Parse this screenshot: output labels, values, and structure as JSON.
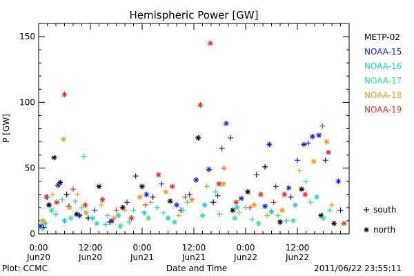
{
  "chart_data": {
    "type": "scatter",
    "title": "Hemispheric Power [GW]",
    "xlabel": "Date and Time",
    "ylabel": "P [GW]",
    "x_units": "hours since 2011-06-20 00:00",
    "xlim": [
      0,
      72
    ],
    "ylim": [
      0,
      160
    ],
    "yticks": [
      0,
      50,
      100,
      150
    ],
    "ytick_labels": [
      "0",
      "50",
      "100",
      "150"
    ],
    "xticks": [
      0,
      12,
      24,
      36,
      48,
      60
    ],
    "xtick_labels": [
      [
        "0:00",
        "Jun20"
      ],
      [
        "12:00",
        "Jun20"
      ],
      [
        "0:00",
        "Jun21"
      ],
      [
        "12:00",
        "Jun21"
      ],
      [
        "0:00",
        "Jun22"
      ],
      [
        "12:00",
        "Jun22"
      ]
    ],
    "marker_legend": [
      {
        "marker": "+",
        "label": "south"
      },
      {
        "marker": "*",
        "label": "north"
      }
    ],
    "series": [
      {
        "name": "METP-02",
        "color": "#000000",
        "points": [
          {
            "x": 1.2,
            "y": 5,
            "m": "+"
          },
          {
            "x": 2.4,
            "y": 22,
            "m": "*"
          },
          {
            "x": 3.6,
            "y": 58,
            "m": "*"
          },
          {
            "x": 5.0,
            "y": 39,
            "m": "*"
          },
          {
            "x": 6.5,
            "y": 30,
            "m": "+"
          },
          {
            "x": 8.8,
            "y": 15,
            "m": "*"
          },
          {
            "x": 11.5,
            "y": 12,
            "m": "+"
          },
          {
            "x": 14.0,
            "y": 36,
            "m": "*"
          },
          {
            "x": 16.5,
            "y": 9,
            "m": "+"
          },
          {
            "x": 19.5,
            "y": 20,
            "m": "*"
          },
          {
            "x": 24.0,
            "y": 36,
            "m": "*"
          },
          {
            "x": 26.5,
            "y": 28,
            "m": "+"
          },
          {
            "x": 30.5,
            "y": 25,
            "m": "*"
          },
          {
            "x": 33.0,
            "y": 18,
            "m": "+"
          },
          {
            "x": 37.0,
            "y": 73,
            "m": "*"
          },
          {
            "x": 40.5,
            "y": 24,
            "m": "+"
          },
          {
            "x": 45.0,
            "y": 18,
            "m": "*"
          },
          {
            "x": 48.5,
            "y": 32,
            "m": "*"
          },
          {
            "x": 52.5,
            "y": 51,
            "m": "+"
          },
          {
            "x": 56.0,
            "y": 9,
            "m": "*"
          },
          {
            "x": 58.5,
            "y": 28,
            "m": "+"
          },
          {
            "x": 61.0,
            "y": 34,
            "m": "*"
          },
          {
            "x": 65.5,
            "y": 14,
            "m": "*"
          },
          {
            "x": 68.5,
            "y": 8,
            "m": "*"
          },
          {
            "x": 70.0,
            "y": 18,
            "m": "+"
          }
        ]
      },
      {
        "name": "NOAA-15",
        "color": "#1428c8",
        "points": [
          {
            "x": 0.5,
            "y": 6,
            "m": "*"
          },
          {
            "x": 2.0,
            "y": 28,
            "m": "+"
          },
          {
            "x": 4.5,
            "y": 37,
            "m": "*"
          },
          {
            "x": 7.0,
            "y": 21,
            "m": "+"
          },
          {
            "x": 9.5,
            "y": 14,
            "m": "*"
          },
          {
            "x": 13.0,
            "y": 18,
            "m": "+"
          },
          {
            "x": 17.0,
            "y": 10,
            "m": "*"
          },
          {
            "x": 20.5,
            "y": 24,
            "m": "+"
          },
          {
            "x": 22.5,
            "y": 44,
            "m": "+"
          },
          {
            "x": 25.0,
            "y": 30,
            "m": "*"
          },
          {
            "x": 28.5,
            "y": 38,
            "m": "+"
          },
          {
            "x": 32.0,
            "y": 22,
            "m": "*"
          },
          {
            "x": 35.0,
            "y": 30,
            "m": "+"
          },
          {
            "x": 36.5,
            "y": 41,
            "m": "*"
          },
          {
            "x": 39.5,
            "y": 49,
            "m": "*"
          },
          {
            "x": 41.5,
            "y": 29,
            "m": "+"
          },
          {
            "x": 42.5,
            "y": 65,
            "m": "+"
          },
          {
            "x": 43.5,
            "y": 84,
            "m": "*"
          },
          {
            "x": 44.5,
            "y": 73,
            "m": "+"
          },
          {
            "x": 47.0,
            "y": 27,
            "m": "*"
          },
          {
            "x": 50.5,
            "y": 45,
            "m": "+"
          },
          {
            "x": 52.5,
            "y": 21,
            "m": "*"
          },
          {
            "x": 53.5,
            "y": 68,
            "m": "*"
          },
          {
            "x": 55.0,
            "y": 36,
            "m": "+"
          },
          {
            "x": 58.0,
            "y": 35,
            "m": "*"
          },
          {
            "x": 60.0,
            "y": 56,
            "m": "+"
          },
          {
            "x": 61.5,
            "y": 68,
            "m": "*"
          },
          {
            "x": 62.5,
            "y": 69,
            "m": "+"
          },
          {
            "x": 63.5,
            "y": 74,
            "m": "*"
          },
          {
            "x": 65.0,
            "y": 75,
            "m": "*"
          },
          {
            "x": 66.5,
            "y": 56,
            "m": "+"
          },
          {
            "x": 69.5,
            "y": 40,
            "m": "*"
          }
        ]
      },
      {
        "name": "NOAA-16",
        "color": "#1ec8dc",
        "points": [
          {
            "x": 1.5,
            "y": 8,
            "m": "*"
          },
          {
            "x": 4.0,
            "y": 15,
            "m": "+"
          },
          {
            "x": 6.0,
            "y": 10,
            "m": "*"
          },
          {
            "x": 8.5,
            "y": 25,
            "m": "+"
          },
          {
            "x": 10.5,
            "y": 59,
            "m": "+"
          },
          {
            "x": 12.5,
            "y": 12,
            "m": "*"
          },
          {
            "x": 15.5,
            "y": 7,
            "m": "+"
          },
          {
            "x": 18.5,
            "y": 14,
            "m": "*"
          },
          {
            "x": 21.0,
            "y": 9,
            "m": "+"
          },
          {
            "x": 24.5,
            "y": 16,
            "m": "*"
          },
          {
            "x": 27.5,
            "y": 20,
            "m": "+"
          },
          {
            "x": 30.0,
            "y": 12,
            "m": "*"
          },
          {
            "x": 33.5,
            "y": 18,
            "m": "+"
          },
          {
            "x": 38.5,
            "y": 22,
            "m": "*"
          },
          {
            "x": 42.0,
            "y": 15,
            "m": "+"
          },
          {
            "x": 46.0,
            "y": 20,
            "m": "*"
          },
          {
            "x": 49.5,
            "y": 11,
            "m": "+"
          },
          {
            "x": 54.0,
            "y": 17,
            "m": "*"
          },
          {
            "x": 57.5,
            "y": 10,
            "m": "+"
          },
          {
            "x": 59.5,
            "y": 22,
            "m": "*"
          },
          {
            "x": 62.0,
            "y": 40,
            "m": "+"
          },
          {
            "x": 64.5,
            "y": 28,
            "m": "*"
          },
          {
            "x": 67.5,
            "y": 18,
            "m": "+"
          }
        ]
      },
      {
        "name": "NOAA-17",
        "color": "#28e682",
        "points": [
          {
            "x": 0.8,
            "y": 4,
            "m": "+"
          },
          {
            "x": 3.0,
            "y": 18,
            "m": "*"
          },
          {
            "x": 5.5,
            "y": 26,
            "m": "+"
          },
          {
            "x": 7.5,
            "y": 12,
            "m": "*"
          },
          {
            "x": 10.0,
            "y": 20,
            "m": "+"
          },
          {
            "x": 13.5,
            "y": 8,
            "m": "*"
          },
          {
            "x": 16.0,
            "y": 14,
            "m": "+"
          },
          {
            "x": 19.0,
            "y": 6,
            "m": "*"
          },
          {
            "x": 22.0,
            "y": 18,
            "m": "+"
          },
          {
            "x": 25.5,
            "y": 12,
            "m": "*"
          },
          {
            "x": 29.0,
            "y": 16,
            "m": "+"
          },
          {
            "x": 31.5,
            "y": 9,
            "m": "*"
          },
          {
            "x": 34.5,
            "y": 24,
            "m": "+"
          },
          {
            "x": 38.0,
            "y": 14,
            "m": "*"
          },
          {
            "x": 41.0,
            "y": 32,
            "m": "+"
          },
          {
            "x": 45.5,
            "y": 12,
            "m": "*"
          },
          {
            "x": 48.0,
            "y": 20,
            "m": "+"
          },
          {
            "x": 51.0,
            "y": 8,
            "m": "*"
          },
          {
            "x": 55.5,
            "y": 14,
            "m": "+"
          },
          {
            "x": 59.0,
            "y": 10,
            "m": "*"
          },
          {
            "x": 63.0,
            "y": 24,
            "m": "+"
          },
          {
            "x": 66.0,
            "y": 12,
            "m": "*"
          }
        ]
      },
      {
        "name": "NOAA-18",
        "color": "#f0961e",
        "points": [
          {
            "x": 1.0,
            "y": 10,
            "m": "*"
          },
          {
            "x": 3.2,
            "y": 30,
            "m": "+"
          },
          {
            "x": 5.8,
            "y": 72,
            "m": "*"
          },
          {
            "x": 7.2,
            "y": 20,
            "m": "*"
          },
          {
            "x": 9.0,
            "y": 30,
            "m": "+"
          },
          {
            "x": 11.0,
            "y": 16,
            "m": "*"
          },
          {
            "x": 14.5,
            "y": 22,
            "m": "+"
          },
          {
            "x": 17.5,
            "y": 12,
            "m": "*"
          },
          {
            "x": 20.0,
            "y": 18,
            "m": "+"
          },
          {
            "x": 23.5,
            "y": 28,
            "m": "*"
          },
          {
            "x": 26.0,
            "y": 24,
            "m": "+"
          },
          {
            "x": 29.5,
            "y": 32,
            "m": "*"
          },
          {
            "x": 32.5,
            "y": 14,
            "m": "+"
          },
          {
            "x": 35.5,
            "y": 26,
            "m": "*"
          },
          {
            "x": 39.0,
            "y": 36,
            "m": "+"
          },
          {
            "x": 42.8,
            "y": 38,
            "m": "*"
          },
          {
            "x": 46.5,
            "y": 16,
            "m": "+"
          },
          {
            "x": 50.0,
            "y": 22,
            "m": "*"
          },
          {
            "x": 53.0,
            "y": 14,
            "m": "+"
          },
          {
            "x": 56.5,
            "y": 18,
            "m": "*"
          },
          {
            "x": 60.5,
            "y": 48,
            "m": "+"
          },
          {
            "x": 63.8,
            "y": 55,
            "m": "*"
          },
          {
            "x": 66.8,
            "y": 70,
            "m": "*"
          },
          {
            "x": 68.0,
            "y": 22,
            "m": "+"
          }
        ]
      },
      {
        "name": "NOAA-19",
        "color": "#dc321e",
        "points": [
          {
            "x": 1.8,
            "y": 28,
            "m": "*"
          },
          {
            "x": 4.2,
            "y": 24,
            "m": "*"
          },
          {
            "x": 6.0,
            "y": 106,
            "m": "*"
          },
          {
            "x": 8.0,
            "y": 34,
            "m": "+"
          },
          {
            "x": 10.8,
            "y": 22,
            "m": "*"
          },
          {
            "x": 14.8,
            "y": 26,
            "m": "*"
          },
          {
            "x": 18.0,
            "y": 18,
            "m": "+"
          },
          {
            "x": 21.5,
            "y": 12,
            "m": "*"
          },
          {
            "x": 24.8,
            "y": 22,
            "m": "+"
          },
          {
            "x": 27.8,
            "y": 45,
            "m": "*"
          },
          {
            "x": 31.0,
            "y": 36,
            "m": "*"
          },
          {
            "x": 34.0,
            "y": 28,
            "m": "+"
          },
          {
            "x": 37.5,
            "y": 98,
            "m": "*"
          },
          {
            "x": 39.8,
            "y": 145,
            "m": "*"
          },
          {
            "x": 41.8,
            "y": 38,
            "m": "*"
          },
          {
            "x": 43.0,
            "y": 50,
            "m": "+"
          },
          {
            "x": 45.8,
            "y": 24,
            "m": "*"
          },
          {
            "x": 49.0,
            "y": 20,
            "m": "+"
          },
          {
            "x": 51.5,
            "y": 30,
            "m": "*"
          },
          {
            "x": 54.5,
            "y": 24,
            "m": "+"
          },
          {
            "x": 57.0,
            "y": 30,
            "m": "*"
          },
          {
            "x": 61.8,
            "y": 30,
            "m": "*"
          },
          {
            "x": 65.8,
            "y": 82,
            "m": "+"
          },
          {
            "x": 67.2,
            "y": 62,
            "m": "*"
          },
          {
            "x": 70.8,
            "y": 8,
            "m": "*"
          }
        ]
      }
    ]
  },
  "footer": {
    "plot_credit": "Plot: CCMC",
    "timestamp": "2011/06/22 23:55:11"
  }
}
